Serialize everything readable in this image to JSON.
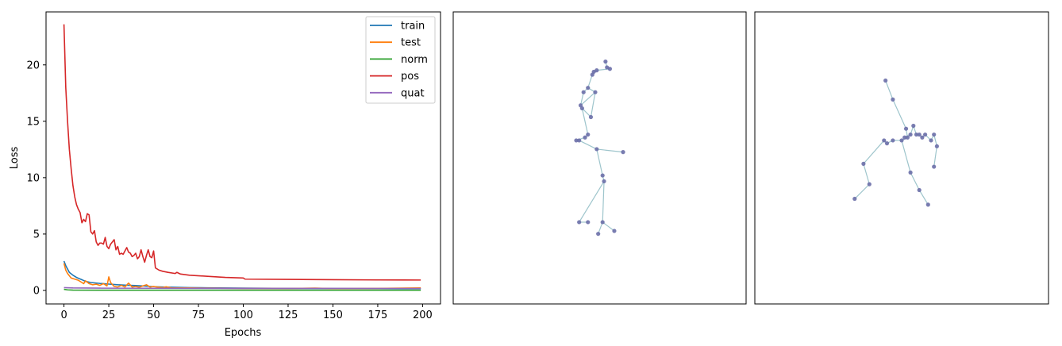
{
  "colors": {
    "train": "#1f77b4",
    "test": "#ff7f0e",
    "norm": "#2ca02c",
    "pos": "#d62728",
    "quat": "#9467bd",
    "bone": "#9ec5cc",
    "joint": "#6b6fa8"
  },
  "chart_data": [
    {
      "type": "line",
      "title": "",
      "xlabel": "Epochs",
      "ylabel": "Loss",
      "xlim": [
        -10,
        210
      ],
      "ylim": [
        -1.2,
        24.7
      ],
      "xticks": [
        0,
        25,
        50,
        75,
        100,
        125,
        150,
        175,
        200
      ],
      "yticks": [
        0,
        5,
        10,
        15,
        20
      ],
      "legend_position": "top-right",
      "grid": false,
      "series": [
        {
          "name": "train",
          "color_key": "train",
          "points": [
            [
              0,
              2.6
            ],
            [
              1,
              2.2
            ],
            [
              2,
              1.9
            ],
            [
              3,
              1.6
            ],
            [
              5,
              1.35
            ],
            [
              7,
              1.15
            ],
            [
              10,
              0.95
            ],
            [
              12,
              0.8
            ],
            [
              15,
              0.7
            ],
            [
              20,
              0.62
            ],
            [
              25,
              0.56
            ],
            [
              30,
              0.5
            ],
            [
              35,
              0.46
            ],
            [
              40,
              0.43
            ],
            [
              45,
              0.39
            ],
            [
              50,
              0.33
            ],
            [
              55,
              0.3
            ],
            [
              60,
              0.28
            ],
            [
              70,
              0.25
            ],
            [
              80,
              0.23
            ],
            [
              100,
              0.2
            ],
            [
              125,
              0.18
            ],
            [
              150,
              0.17
            ],
            [
              175,
              0.16
            ],
            [
              199,
              0.15
            ]
          ]
        },
        {
          "name": "test",
          "color_key": "test",
          "points": [
            [
              0,
              2.4
            ],
            [
              1,
              1.8
            ],
            [
              2,
              1.5
            ],
            [
              3,
              1.3
            ],
            [
              4,
              1.1
            ],
            [
              6,
              1.0
            ],
            [
              8,
              0.9
            ],
            [
              10,
              0.7
            ],
            [
              11,
              0.6
            ],
            [
              12,
              0.85
            ],
            [
              14,
              0.6
            ],
            [
              16,
              0.5
            ],
            [
              18,
              0.55
            ],
            [
              20,
              0.45
            ],
            [
              22,
              0.6
            ],
            [
              24,
              0.4
            ],
            [
              25,
              1.2
            ],
            [
              26,
              0.7
            ],
            [
              28,
              0.35
            ],
            [
              30,
              0.3
            ],
            [
              32,
              0.45
            ],
            [
              34,
              0.3
            ],
            [
              36,
              0.65
            ],
            [
              38,
              0.3
            ],
            [
              40,
              0.35
            ],
            [
              42,
              0.28
            ],
            [
              44,
              0.4
            ],
            [
              46,
              0.5
            ],
            [
              48,
              0.3
            ],
            [
              50,
              0.35
            ],
            [
              52,
              0.3
            ],
            [
              55,
              0.25
            ],
            [
              57,
              0.32
            ],
            [
              60,
              0.22
            ],
            [
              70,
              0.22
            ],
            [
              80,
              0.2
            ],
            [
              100,
              0.18
            ],
            [
              125,
              0.17
            ],
            [
              140,
              0.2
            ],
            [
              150,
              0.16
            ],
            [
              175,
              0.18
            ],
            [
              199,
              0.22
            ]
          ]
        },
        {
          "name": "norm",
          "color_key": "norm",
          "points": [
            [
              0,
              0.1
            ],
            [
              2,
              0.05
            ],
            [
              5,
              0.03
            ],
            [
              20,
              0.02
            ],
            [
              199,
              0.02
            ]
          ]
        },
        {
          "name": "pos",
          "color_key": "pos",
          "points": [
            [
              0,
              23.6
            ],
            [
              1,
              18.0
            ],
            [
              2,
              15.0
            ],
            [
              3,
              12.5
            ],
            [
              4,
              10.8
            ],
            [
              5,
              9.3
            ],
            [
              6,
              8.3
            ],
            [
              7,
              7.6
            ],
            [
              8,
              7.2
            ],
            [
              9,
              6.9
            ],
            [
              10,
              6.0
            ],
            [
              11,
              6.3
            ],
            [
              12,
              6.1
            ],
            [
              13,
              6.8
            ],
            [
              14,
              6.7
            ],
            [
              15,
              5.2
            ],
            [
              16,
              5.0
            ],
            [
              17,
              5.3
            ],
            [
              18,
              4.3
            ],
            [
              19,
              4.0
            ],
            [
              20,
              4.2
            ],
            [
              21,
              4.2
            ],
            [
              22,
              4.1
            ],
            [
              23,
              4.7
            ],
            [
              24,
              3.9
            ],
            [
              25,
              3.7
            ],
            [
              26,
              4.1
            ],
            [
              27,
              4.3
            ],
            [
              28,
              4.5
            ],
            [
              29,
              3.6
            ],
            [
              30,
              3.9
            ],
            [
              31,
              3.2
            ],
            [
              32,
              3.3
            ],
            [
              33,
              3.2
            ],
            [
              34,
              3.5
            ],
            [
              35,
              3.8
            ],
            [
              36,
              3.4
            ],
            [
              37,
              3.3
            ],
            [
              38,
              3.0
            ],
            [
              39,
              3.1
            ],
            [
              40,
              3.3
            ],
            [
              41,
              2.8
            ],
            [
              42,
              3.0
            ],
            [
              43,
              3.6
            ],
            [
              44,
              3.0
            ],
            [
              45,
              2.5
            ],
            [
              46,
              3.1
            ],
            [
              47,
              3.6
            ],
            [
              48,
              3.0
            ],
            [
              49,
              2.9
            ],
            [
              50,
              3.5
            ],
            [
              51,
              2.0
            ],
            [
              53,
              1.8
            ],
            [
              55,
              1.7
            ],
            [
              58,
              1.6
            ],
            [
              62,
              1.5
            ],
            [
              63,
              1.6
            ],
            [
              65,
              1.45
            ],
            [
              70,
              1.35
            ],
            [
              80,
              1.25
            ],
            [
              90,
              1.15
            ],
            [
              100,
              1.1
            ],
            [
              101,
              1.0
            ],
            [
              125,
              0.98
            ],
            [
              150,
              0.95
            ],
            [
              175,
              0.93
            ],
            [
              199,
              0.92
            ]
          ]
        },
        {
          "name": "quat",
          "color_key": "quat",
          "points": [
            [
              0,
              0.25
            ],
            [
              5,
              0.22
            ],
            [
              20,
              0.2
            ],
            [
              50,
              0.19
            ],
            [
              100,
              0.18
            ],
            [
              150,
              0.18
            ],
            [
              199,
              0.17
            ]
          ]
        }
      ]
    },
    {
      "type": "scatter",
      "title": "",
      "xlabel": "",
      "ylabel": "",
      "xlim": [
        0,
        100
      ],
      "ylim": [
        0,
        100
      ],
      "grid": false,
      "axes_visible": false,
      "joints": [
        [
          52,
          83
        ],
        [
          52.5,
          81
        ],
        [
          53.5,
          80.5
        ],
        [
          49,
          80
        ],
        [
          48,
          79.5
        ],
        [
          47.5,
          78.5
        ],
        [
          46,
          74
        ],
        [
          44.5,
          72.5
        ],
        [
          43.5,
          68
        ],
        [
          48.5,
          72.5
        ],
        [
          47,
          64
        ],
        [
          44,
          67
        ],
        [
          46,
          58
        ],
        [
          45,
          57
        ],
        [
          42,
          56
        ],
        [
          43,
          56
        ],
        [
          49,
          53
        ],
        [
          58,
          52
        ],
        [
          51,
          44
        ],
        [
          51.5,
          42
        ],
        [
          51,
          28
        ],
        [
          49.5,
          24
        ],
        [
          55,
          25
        ],
        [
          43,
          28
        ],
        [
          46,
          28
        ]
      ],
      "bones": [
        [
          0,
          1
        ],
        [
          1,
          2
        ],
        [
          2,
          3
        ],
        [
          3,
          4
        ],
        [
          4,
          5
        ],
        [
          5,
          6
        ],
        [
          6,
          7
        ],
        [
          7,
          8
        ],
        [
          8,
          9
        ],
        [
          9,
          10
        ],
        [
          10,
          11
        ],
        [
          11,
          12
        ],
        [
          12,
          13
        ],
        [
          13,
          14
        ],
        [
          14,
          15
        ],
        [
          15,
          16
        ],
        [
          16,
          17
        ],
        [
          16,
          18
        ],
        [
          18,
          19
        ],
        [
          19,
          20
        ],
        [
          20,
          21
        ],
        [
          20,
          22
        ],
        [
          19,
          23
        ],
        [
          23,
          24
        ],
        [
          6,
          9
        ]
      ]
    },
    {
      "type": "scatter",
      "title": "",
      "xlabel": "",
      "ylabel": "",
      "xlim": [
        0,
        100
      ],
      "ylim": [
        0,
        100
      ],
      "grid": false,
      "axes_visible": false,
      "joints": [
        [
          44.5,
          76.5
        ],
        [
          47,
          70
        ],
        [
          51.5,
          60
        ],
        [
          52,
          57
        ],
        [
          51,
          57
        ],
        [
          53,
          58
        ],
        [
          54,
          61
        ],
        [
          55,
          58
        ],
        [
          56,
          58
        ],
        [
          57,
          57
        ],
        [
          58,
          58
        ],
        [
          60,
          56
        ],
        [
          61,
          58
        ],
        [
          62,
          54
        ],
        [
          61,
          47
        ],
        [
          50,
          56
        ],
        [
          47,
          56
        ],
        [
          45,
          55
        ],
        [
          44,
          56
        ],
        [
          37,
          48
        ],
        [
          39,
          41
        ],
        [
          34,
          36
        ],
        [
          53,
          45
        ],
        [
          56,
          39
        ],
        [
          59,
          34
        ]
      ],
      "bones": [
        [
          0,
          1
        ],
        [
          1,
          2
        ],
        [
          2,
          3
        ],
        [
          3,
          4
        ],
        [
          4,
          5
        ],
        [
          5,
          6
        ],
        [
          6,
          7
        ],
        [
          7,
          8
        ],
        [
          8,
          9
        ],
        [
          9,
          10
        ],
        [
          10,
          11
        ],
        [
          11,
          12
        ],
        [
          12,
          13
        ],
        [
          13,
          14
        ],
        [
          3,
          15
        ],
        [
          15,
          16
        ],
        [
          16,
          17
        ],
        [
          17,
          18
        ],
        [
          18,
          19
        ],
        [
          19,
          20
        ],
        [
          20,
          21
        ],
        [
          15,
          22
        ],
        [
          22,
          23
        ],
        [
          23,
          24
        ]
      ]
    }
  ]
}
